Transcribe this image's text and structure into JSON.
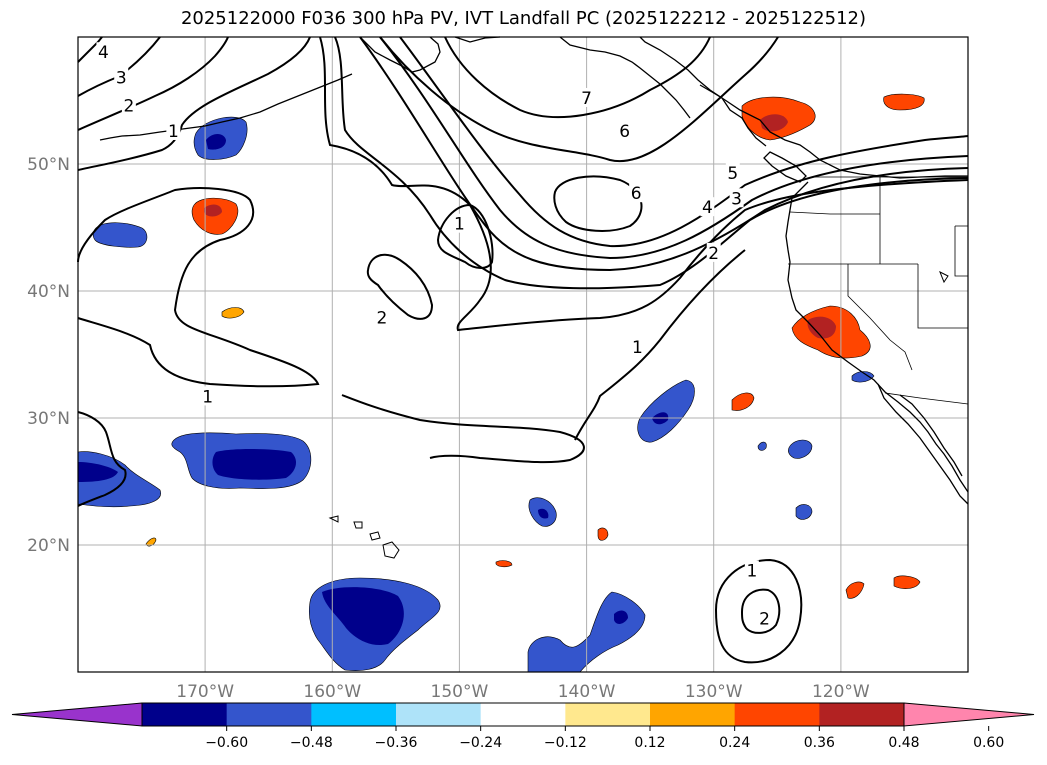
{
  "title": "2025122000 F036 300 hPa PV, IVT Landfall PC (2025122212 - 2025122512)",
  "map": {
    "lon_range": [
      -180,
      -110
    ],
    "lat_range": [
      10,
      60
    ],
    "lat_labels": [
      {
        "value": 50,
        "text": "50°N"
      },
      {
        "value": 40,
        "text": "40°N"
      },
      {
        "value": 30,
        "text": "30°N"
      },
      {
        "value": 20,
        "text": "20°N"
      }
    ],
    "lon_labels": [
      {
        "value": -170,
        "text": "170°W"
      },
      {
        "value": -160,
        "text": "160°W"
      },
      {
        "value": -150,
        "text": "150°W"
      },
      {
        "value": -140,
        "text": "140°W"
      },
      {
        "value": -130,
        "text": "130°W"
      },
      {
        "value": -120,
        "text": "120°W"
      }
    ],
    "contour_labels": [
      {
        "text": "4",
        "lon": -178.0,
        "lat": 58.8
      },
      {
        "text": "3",
        "lon": -176.6,
        "lat": 56.8
      },
      {
        "text": "2",
        "lon": -176.0,
        "lat": 54.6
      },
      {
        "text": "1",
        "lon": -172.5,
        "lat": 52.6
      },
      {
        "text": "7",
        "lon": -140.0,
        "lat": 55.2
      },
      {
        "text": "6",
        "lon": -137.0,
        "lat": 52.6
      },
      {
        "text": "6",
        "lon": -136.1,
        "lat": 47.7
      },
      {
        "text": "5",
        "lon": -128.5,
        "lat": 49.3
      },
      {
        "text": "4",
        "lon": -130.5,
        "lat": 46.6
      },
      {
        "text": "3",
        "lon": -128.2,
        "lat": 47.3
      },
      {
        "text": "2",
        "lon": -130.0,
        "lat": 43.0
      },
      {
        "text": "1",
        "lon": -136.0,
        "lat": 35.6
      },
      {
        "text": "1",
        "lon": -150.0,
        "lat": 45.3
      },
      {
        "text": "2",
        "lon": -156.1,
        "lat": 37.9
      },
      {
        "text": "1",
        "lon": -169.8,
        "lat": 31.7
      },
      {
        "text": "1",
        "lon": -127.0,
        "lat": 18.0
      },
      {
        "text": "2",
        "lon": -126.0,
        "lat": 14.2
      }
    ]
  },
  "colorbar": {
    "tick_labels": [
      "−0.60",
      "−0.48",
      "−0.36",
      "−0.24",
      "−0.12",
      "0.12",
      "0.24",
      "0.36",
      "0.48",
      "0.60"
    ],
    "colors": [
      "#9933cc",
      "#00008b",
      "#3455cc",
      "#00bfff",
      "#aee3f9",
      "#ffffff",
      "#ffe88e",
      "#ffa500",
      "#ff4500",
      "#b22222",
      "#ff85ad"
    ]
  },
  "colors": {
    "contour": "#000000",
    "grid": "#b0b0b0",
    "coast": "#000000"
  }
}
